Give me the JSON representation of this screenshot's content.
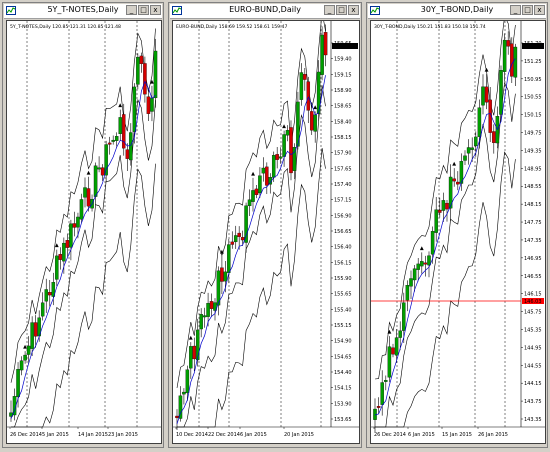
{
  "windows": [
    {
      "title": "5Y_T-NOTES,Daily",
      "info": "5Y_T-NOTES,Daily  120.85 121.31 120.85 121.48",
      "price_labels": [],
      "date_labels": [
        "26 Dec 2014",
        "5 Jan 2015",
        "14 Jan 2015",
        "23 Jan 2015"
      ],
      "controls": [
        "_",
        "□",
        "x"
      ]
    },
    {
      "title": "EURO-BUND,Daily",
      "info": "EURO-BUND,Daily  158.69 159.52 158.61 159.47",
      "current_price": "159.47",
      "price_labels": [
        "159.65",
        "159.40",
        "159.15",
        "158.90",
        "158.65",
        "158.40",
        "158.15",
        "157.90",
        "157.65",
        "157.40",
        "157.15",
        "156.90",
        "156.65",
        "156.40",
        "156.15",
        "155.90",
        "155.65",
        "155.40",
        "155.15",
        "154.90",
        "154.65",
        "154.40",
        "154.15",
        "153.90",
        "153.65"
      ],
      "date_labels": [
        "10 Dec 2014",
        "22 Dec 2014",
        "6 Jan 2015",
        "20 Jan 2015"
      ],
      "controls": [
        "_",
        "□",
        "x"
      ]
    },
    {
      "title": "30Y_T-BOND,Daily",
      "info": "30Y_T-BOND,Daily  150.21 151.83 150.18 151.74",
      "current_price": "151.74",
      "red_line_label": "146.03",
      "price_labels": [
        "151.70",
        "151.25",
        "150.95",
        "150.55",
        "150.15",
        "149.75",
        "149.35",
        "148.95",
        "148.55",
        "148.15",
        "147.75",
        "147.35",
        "146.95",
        "146.55",
        "146.15",
        "145.75",
        "145.35",
        "144.95",
        "144.55",
        "144.15",
        "143.75",
        "143.35"
      ],
      "date_labels": [
        "26 Dec 2014",
        "6 Jan 2015",
        "15 Jan 2015",
        "26 Jan 2015"
      ],
      "controls": [
        "_",
        "□",
        "x"
      ]
    }
  ],
  "colors": {
    "bull_candle": "#009e00",
    "bear_candle": "#d40000",
    "wick": "#000000",
    "moving_average": "#0000cc",
    "band": "#000000",
    "red_level": "#ff0000",
    "grid": "#000000"
  }
}
